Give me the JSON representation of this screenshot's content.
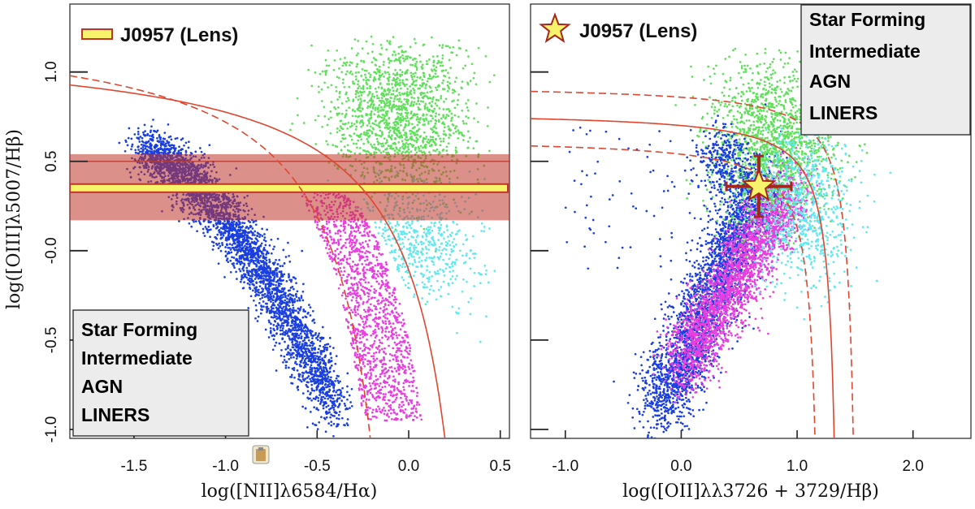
{
  "chart_data": [
    {
      "type": "scatter",
      "panel": "left",
      "xlabel": "log([NII]λ6584/Hα)",
      "ylabel": "log([OIII]λ5007/Hβ)",
      "xlim": [
        -1.85,
        0.55
      ],
      "ylim": [
        -1.05,
        1.38
      ],
      "xticks": [
        -1.5,
        -1.0,
        -0.5,
        0.0,
        0.5
      ],
      "xtick_labels": [
        "-1.5",
        "-1.0",
        "-0.5",
        "0.0",
        "0.5"
      ],
      "yticks": [
        1.0,
        0.5,
        0.0,
        -0.5,
        -1.0
      ],
      "ytick_labels": [
        "1.0",
        "0.5",
        "-0.0",
        "-0.5",
        "-1.0"
      ],
      "grid": false,
      "lens": {
        "label": "J0957 (Lens)",
        "marker": "horizontal-band",
        "y": 0.35,
        "y_range": [
          0.17,
          0.54
        ]
      },
      "legend": {
        "placement": "lower-left",
        "entries": [
          {
            "label": "Star Forming",
            "color": "#1a3fe0"
          },
          {
            "label": "Intermediate",
            "color": "#e83ee0"
          },
          {
            "label": "AGN",
            "color": "#5fe05a"
          },
          {
            "label": "LINERS",
            "color": "#5fe8f0"
          }
        ]
      },
      "series": [
        {
          "name": "Star Forming",
          "color": "#1a3fe0",
          "region": "below Kauffmann demarcation"
        },
        {
          "name": "Intermediate",
          "color": "#e83ee0",
          "region": "between Kauffmann and Kewley lines"
        },
        {
          "name": "AGN",
          "color": "#5fe05a",
          "region": "above Kewley line, high OIII/Hβ"
        },
        {
          "name": "LINERS",
          "color": "#5fe8f0",
          "region": "above Kewley line, low OIII/Hβ"
        }
      ],
      "curves": [
        {
          "style": "solid",
          "color": "#e0452e",
          "formula": "0.61/(x-0.47)+1.19"
        },
        {
          "style": "dashed",
          "color": "#e0452e",
          "formula": "0.61/(x-0.05)+1.30"
        }
      ]
    },
    {
      "type": "scatter",
      "panel": "right",
      "xlabel": "log([OII]λλ3726 + 3729/Hβ)",
      "ylabel": "",
      "xlim": [
        -1.3,
        2.5
      ],
      "ylim": [
        -1.05,
        1.38
      ],
      "xticks": [
        -1.0,
        0.0,
        1.0,
        2.0
      ],
      "xtick_labels": [
        "-1.0",
        "0.0",
        "1.0",
        "2.0"
      ],
      "yticks": [
        1.0,
        0.5,
        0.0,
        -0.5,
        -1.0
      ],
      "grid": false,
      "lens": {
        "label": "J0957 (Lens)",
        "marker": "star",
        "x": 0.67,
        "y": 0.36,
        "xerr": 0.28,
        "yerr": 0.17
      },
      "legend": {
        "placement": "top-right",
        "entries": [
          {
            "label": "Star Forming",
            "color": "#1a3fe0"
          },
          {
            "label": "Intermediate",
            "color": "#e83ee0"
          },
          {
            "label": "AGN",
            "color": "#5fe05a"
          },
          {
            "label": "LINERS",
            "color": "#5fe8f0"
          }
        ]
      },
      "curves": [
        {
          "style": "solid",
          "color": "#e0452e",
          "formula": "0.11/(x-1.38)+0.78"
        },
        {
          "style": "dashed",
          "color": "#e0452e",
          "formula": "0.11/(x-1.22)+0.63"
        },
        {
          "style": "dashed",
          "color": "#e0452e",
          "formula": "0.11/(x-1.54)+0.93"
        }
      ]
    }
  ]
}
